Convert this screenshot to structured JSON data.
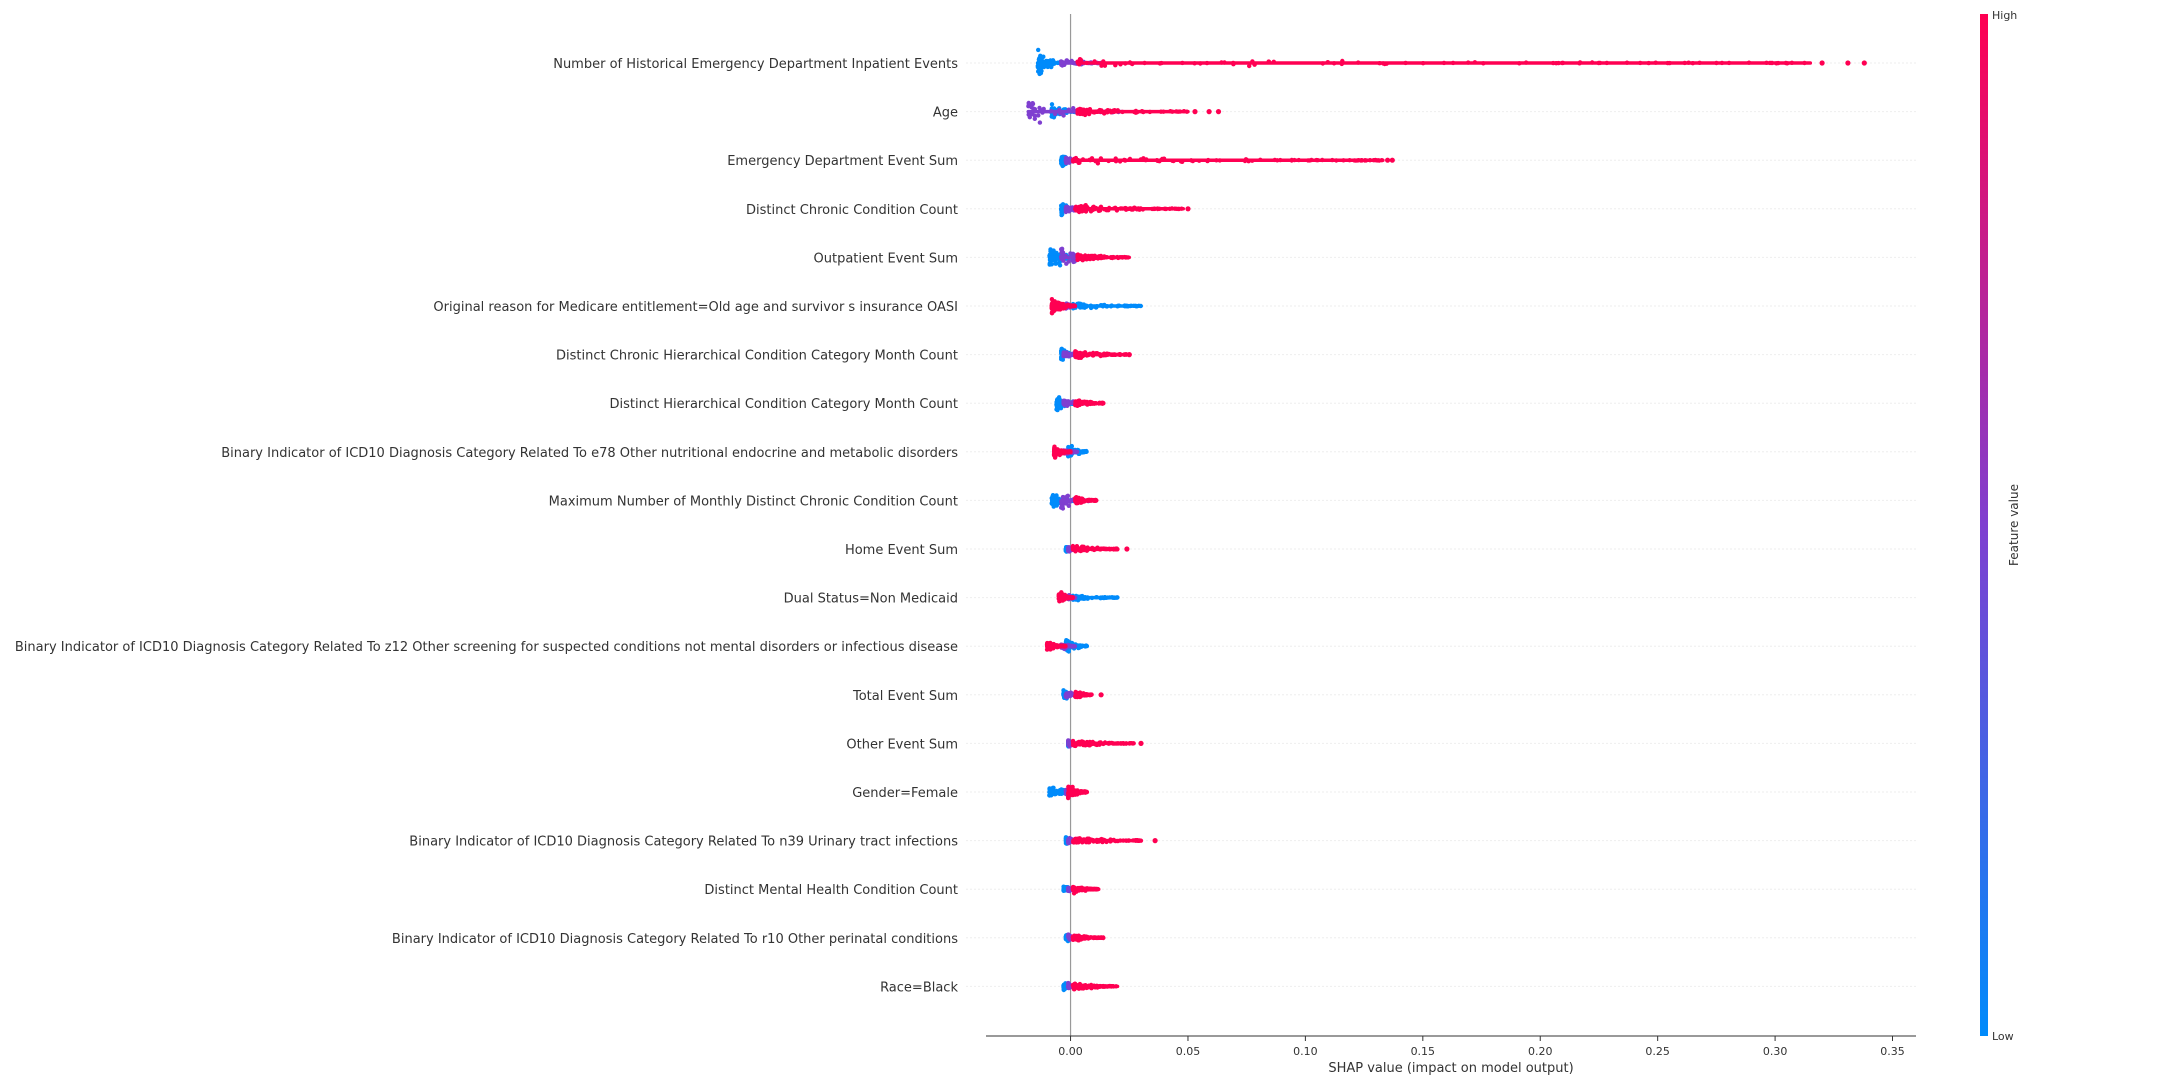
{
  "chart_data": {
    "type": "scatter",
    "subtype": "shap-beeswarm-summary",
    "title": "",
    "xlabel": "SHAP value (impact on model output)",
    "ylabel": "",
    "xlim": [
      -0.036,
      0.36
    ],
    "x_ticks": [
      0.0,
      0.05,
      0.1,
      0.15,
      0.2,
      0.25,
      0.3,
      0.35
    ],
    "x_tick_labels": [
      "0.00",
      "0.05",
      "0.10",
      "0.15",
      "0.20",
      "0.25",
      "0.30",
      "0.35"
    ],
    "zero_line": 0.0,
    "grid": false,
    "colorbar": {
      "label": "Feature value",
      "high_label": "High",
      "low_label": "Low",
      "high_color": "#ff0052",
      "mid_color": "#7f3fd0",
      "low_color": "#008bfb",
      "placement": "right"
    },
    "features": [
      {
        "name": "Number of Historical Emergency Department Inpatient Events",
        "low": {
          "min": -0.014,
          "max": -0.004,
          "peak_width": 1.0
        },
        "mid": {
          "min": -0.004,
          "max": 0.014
        },
        "high": {
          "min": 0.003,
          "max": 0.315,
          "dense_max": 0.25
        },
        "outliers_high": [
          0.32,
          0.331,
          0.338
        ]
      },
      {
        "name": "Age",
        "low": {
          "min": -0.008,
          "max": 0.003,
          "peak_width": 0.5
        },
        "mid": {
          "min": -0.018,
          "max": 0.022,
          "peak_width": 0.9
        },
        "high": {
          "min": 0.003,
          "max": 0.05,
          "dense_max": 0.02
        },
        "outliers_high": [
          0.053,
          0.059,
          0.063
        ]
      },
      {
        "name": "Emergency Department Event Sum",
        "low": {
          "min": -0.004,
          "max": 0.001,
          "peak_width": 0.5
        },
        "mid": {
          "min": -0.002,
          "max": 0.003
        },
        "high": {
          "min": 0.001,
          "max": 0.133,
          "dense_max": 0.11
        },
        "outliers_high": [
          0.135,
          0.137
        ]
      },
      {
        "name": "Distinct Chronic Condition Count",
        "low": {
          "min": -0.004,
          "max": 0.002,
          "peak_width": 0.45
        },
        "mid": {
          "min": -0.002,
          "max": 0.008
        },
        "high": {
          "min": 0.002,
          "max": 0.048,
          "dense_max": 0.03
        },
        "outliers_high": [
          0.05
        ]
      },
      {
        "name": "Outpatient Event Sum",
        "low": {
          "min": -0.009,
          "max": 0.004,
          "peak_width": 0.9
        },
        "mid": {
          "min": -0.004,
          "max": 0.008,
          "peak_width": 0.7
        },
        "high": {
          "min": 0.003,
          "max": 0.025,
          "dense_max": 0.015
        },
        "outliers_high": []
      },
      {
        "name": "Original reason for Medicare entitlement=Old age and survivor s insurance OASI",
        "low": {
          "min": 0.001,
          "max": 0.03,
          "dense_max": 0.03
        },
        "mid": {
          "min": -0.002,
          "max": 0.002
        },
        "high": {
          "min": -0.008,
          "max": 0.002,
          "peak_width": 0.55
        },
        "outliers_high": []
      },
      {
        "name": "Distinct Chronic Hierarchical Condition Category Month Count",
        "low": {
          "min": -0.004,
          "max": 0.002,
          "peak_width": 0.45
        },
        "mid": {
          "min": -0.003,
          "max": 0.006
        },
        "high": {
          "min": 0.002,
          "max": 0.024,
          "dense_max": 0.02
        },
        "outliers_high": [
          0.025
        ]
      },
      {
        "name": "Distinct Hierarchical Condition Category Month Count",
        "low": {
          "min": -0.006,
          "max": 0.002,
          "peak_width": 0.55
        },
        "mid": {
          "min": -0.003,
          "max": 0.006
        },
        "high": {
          "min": 0.002,
          "max": 0.014,
          "dense_max": 0.012
        },
        "outliers_high": []
      },
      {
        "name": "Binary Indicator of ICD10 Diagnosis Category Related To e78 Other nutritional endocrine and metabolic disorders",
        "low": {
          "min": -0.001,
          "max": 0.007,
          "peak_width": 0.5
        },
        "mid": {
          "min": -0.003,
          "max": 0.003
        },
        "high": {
          "min": -0.007,
          "max": 0.0,
          "peak_width": 0.4
        },
        "outliers_high": []
      },
      {
        "name": "Maximum Number of Monthly Distinct Chronic Condition Count",
        "low": {
          "min": -0.008,
          "max": 0.002,
          "peak_width": 0.5
        },
        "mid": {
          "min": -0.004,
          "max": 0.008,
          "peak_width": 0.6
        },
        "high": {
          "min": 0.002,
          "max": 0.011,
          "dense_max": 0.01
        },
        "outliers_high": []
      },
      {
        "name": "Home Event Sum",
        "low": {
          "min": -0.002,
          "max": 0.001,
          "peak_width": 0.3
        },
        "mid": {
          "min": -0.001,
          "max": 0.003
        },
        "high": {
          "min": 0.001,
          "max": 0.02,
          "dense_max": 0.019
        },
        "outliers_high": [
          0.024
        ]
      },
      {
        "name": "Dual Status=Non Medicaid",
        "low": {
          "min": 0.001,
          "max": 0.02,
          "dense_max": 0.02
        },
        "mid": {
          "min": -0.001,
          "max": 0.002
        },
        "high": {
          "min": -0.005,
          "max": 0.001,
          "peak_width": 0.4
        },
        "outliers_high": []
      },
      {
        "name": "Binary Indicator of ICD10 Diagnosis Category Related To z12 Other screening for suspected conditions not mental disorders or infectious disease",
        "low": {
          "min": -0.002,
          "max": 0.007,
          "peak_width": 0.45
        },
        "mid": {
          "min": -0.004,
          "max": 0.002
        },
        "high": {
          "min": -0.01,
          "max": -0.002,
          "peak_width": 0.35
        },
        "outliers_high": []
      },
      {
        "name": "Total Event Sum",
        "low": {
          "min": -0.003,
          "max": 0.002,
          "peak_width": 0.4
        },
        "mid": {
          "min": -0.002,
          "max": 0.006
        },
        "high": {
          "min": 0.002,
          "max": 0.009,
          "dense_max": 0.009
        },
        "outliers_high": [
          0.013
        ]
      },
      {
        "name": "Other Event Sum",
        "low": {
          "min": -0.001,
          "max": 0.001,
          "peak_width": 0.3
        },
        "mid": {
          "min": -0.001,
          "max": 0.002
        },
        "high": {
          "min": 0.001,
          "max": 0.027,
          "dense_max": 0.027
        },
        "outliers_high": [
          0.03
        ]
      },
      {
        "name": "Gender=Female",
        "low": {
          "min": -0.009,
          "max": 0.001,
          "peak_width": 0.5
        },
        "mid": {
          "min": -0.002,
          "max": 0.002
        },
        "high": {
          "min": -0.001,
          "max": 0.007,
          "peak_width": 0.5
        },
        "outliers_high": []
      },
      {
        "name": "Binary Indicator of ICD10 Diagnosis Category Related To n39 Urinary tract infections",
        "low": {
          "min": -0.002,
          "max": 0.001,
          "peak_width": 0.3
        },
        "mid": {
          "min": -0.001,
          "max": 0.002
        },
        "high": {
          "min": 0.001,
          "max": 0.03,
          "dense_max": 0.026
        },
        "outliers_high": [
          0.036
        ]
      },
      {
        "name": "Distinct Mental Health Condition Count",
        "low": {
          "min": -0.003,
          "max": 0.001,
          "peak_width": 0.3
        },
        "mid": {
          "min": -0.001,
          "max": 0.002
        },
        "high": {
          "min": 0.001,
          "max": 0.012,
          "dense_max": 0.012
        },
        "outliers_high": []
      },
      {
        "name": "Binary Indicator of ICD10 Diagnosis Category Related To r10 Other perinatal conditions",
        "low": {
          "min": -0.002,
          "max": 0.001,
          "peak_width": 0.3
        },
        "mid": {
          "min": -0.001,
          "max": 0.002
        },
        "high": {
          "min": 0.001,
          "max": 0.014,
          "dense_max": 0.014
        },
        "outliers_high": []
      },
      {
        "name": "Race=Black",
        "low": {
          "min": -0.003,
          "max": 0.001,
          "peak_width": 0.3
        },
        "mid": {
          "min": -0.001,
          "max": 0.002
        },
        "high": {
          "min": 0.001,
          "max": 0.02,
          "dense_max": 0.02
        },
        "outliers_high": []
      }
    ]
  }
}
